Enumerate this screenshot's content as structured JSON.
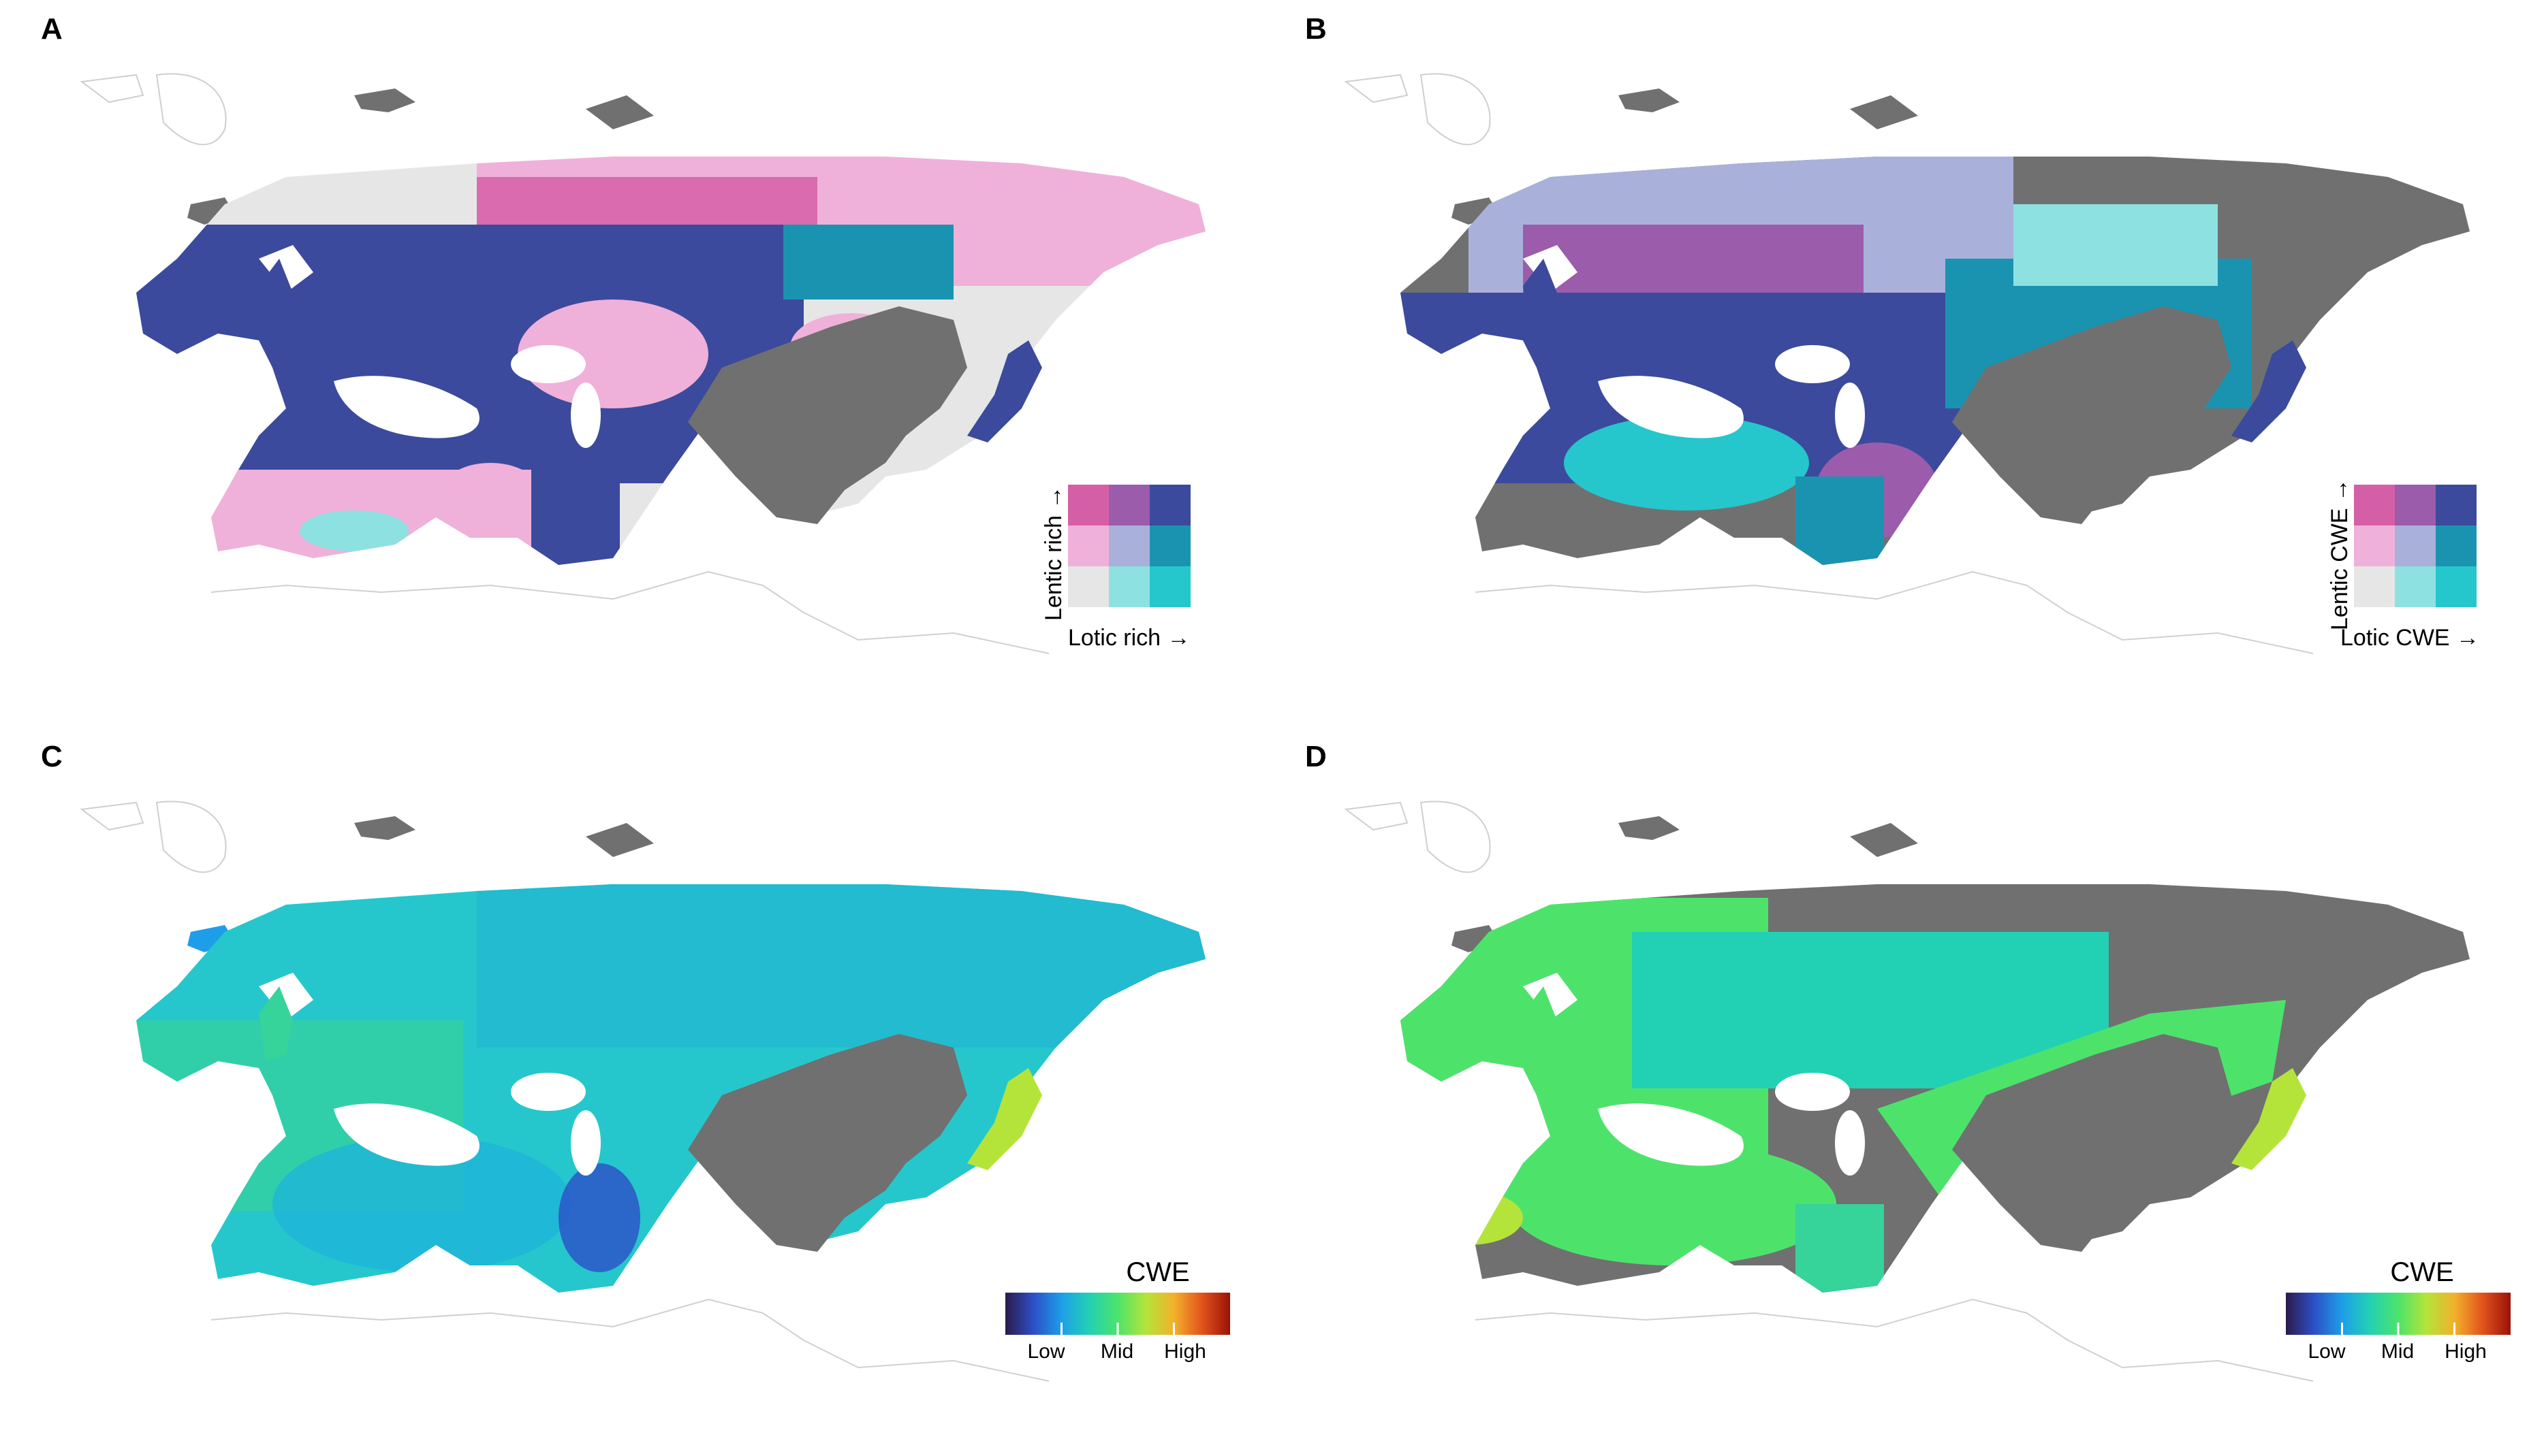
{
  "panels": [
    {
      "label": "A",
      "legend": {
        "type": "bivariate",
        "y_label": "Lentic rich →",
        "x_label": "Lotic rich →",
        "colors": [
          [
            "#d55fa6",
            "#9b5cac",
            "#3b4a9c"
          ],
          [
            "#efb1d9",
            "#a9b1da",
            "#1a93b1"
          ],
          [
            "#e6e6e6",
            "#8ee1e1",
            "#25c7cc"
          ]
        ]
      }
    },
    {
      "label": "B",
      "legend": {
        "type": "bivariate",
        "y_label": "Lentic CWE →",
        "x_label": "Lotic CWE →",
        "colors": [
          [
            "#d55fa6",
            "#9b5cac",
            "#3b4a9c"
          ],
          [
            "#efb1d9",
            "#a9b1da",
            "#1a93b1"
          ],
          [
            "#e6e6e6",
            "#8ee1e1",
            "#25c7cc"
          ]
        ]
      }
    },
    {
      "label": "C",
      "legend": {
        "type": "continuous",
        "title": "CWE",
        "ticks": [
          "Low",
          "Mid",
          "High"
        ],
        "gradient": [
          "#2b1a4a",
          "#2c4fc8",
          "#1e9ee8",
          "#22d1b4",
          "#4de36b",
          "#b4e43a",
          "#f2b12b",
          "#e2531c",
          "#9a1108"
        ]
      }
    },
    {
      "label": "D",
      "legend": {
        "type": "continuous",
        "title": "CWE",
        "ticks": [
          "Low",
          "Mid",
          "High"
        ],
        "gradient": [
          "#2b1a4a",
          "#2c4fc8",
          "#1e9ee8",
          "#22d1b4",
          "#4de36b",
          "#b4e43a",
          "#f2b12b",
          "#e2531c",
          "#9a1108"
        ]
      }
    }
  ],
  "map_colors": {
    "no_data_grey": "#707070",
    "outline": "#c8c8c8",
    "background": "#ffffff"
  }
}
